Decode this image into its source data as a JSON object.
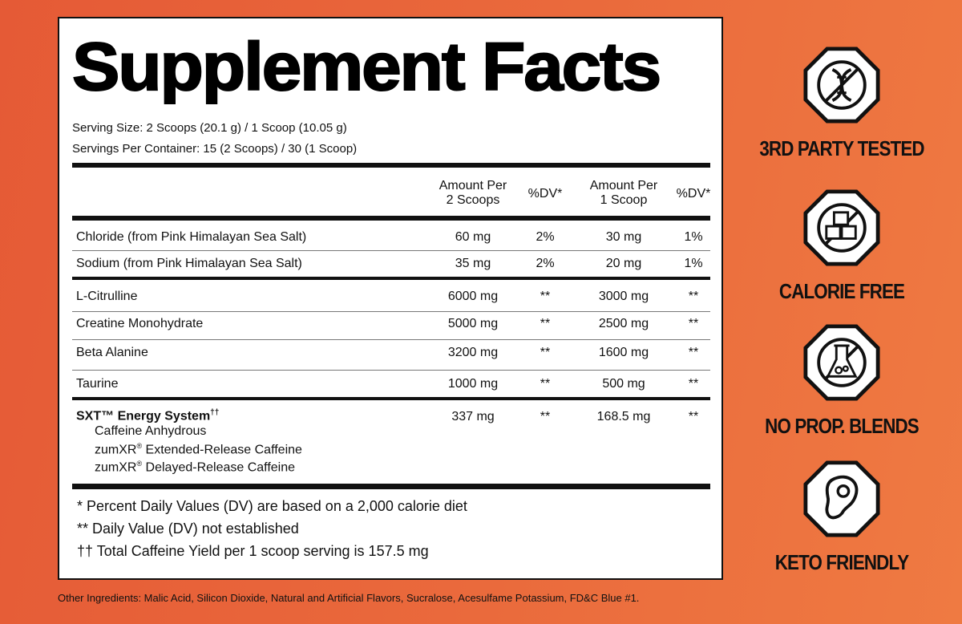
{
  "panel": {
    "title": "Supplement Facts",
    "serving_size": "Serving Size: 2 Scoops (20.1 g) / 1 Scoop (10.05 g)",
    "servings_per_container": "Servings Per Container: 15 (2 Scoops) / 30 (1 Scoop)",
    "headers": {
      "amount2_line1": "Amount Per",
      "amount2_line2": "2 Scoops",
      "dv2": "%DV*",
      "amount1_line1": "Amount Per",
      "amount1_line2": "1 Scoop",
      "dv1": "%DV*"
    },
    "rows": [
      {
        "name": "Chloride (from Pink Himalayan Sea Salt)",
        "amount2": "60 mg",
        "dv2": "2%",
        "amount1": "30 mg",
        "dv1": "1%"
      },
      {
        "name": "Sodium (from Pink Himalayan Sea Salt)",
        "amount2": "35 mg",
        "dv2": "2%",
        "amount1": "20 mg",
        "dv1": "1%"
      },
      {
        "name": "L-Citrulline",
        "amount2": "6000 mg",
        "dv2": "**",
        "amount1": "3000 mg",
        "dv1": "**"
      },
      {
        "name": "Creatine Monohydrate",
        "amount2": "5000 mg",
        "dv2": "**",
        "amount1": "2500 mg",
        "dv1": "**"
      },
      {
        "name": "Beta Alanine",
        "amount2": "3200 mg",
        "dv2": "**",
        "amount1": "1600 mg",
        "dv1": "**"
      },
      {
        "name": "Taurine",
        "amount2": "1000 mg",
        "dv2": "**",
        "amount1": "500 mg",
        "dv1": "**"
      }
    ],
    "energy_system": {
      "name": "SXT™ Energy System",
      "name_mark": "††",
      "amount2": "337 mg",
      "dv2": "**",
      "amount1": "168.5 mg",
      "dv1": "**",
      "sub_1": "Caffeine Anhydrous",
      "sub_2_prefix": "zumXR",
      "sub_2_suffix": " Extended-Release Caffeine",
      "sub_3_prefix": "zumXR",
      "sub_3_suffix": " Delayed-Release Caffeine",
      "registered": "®"
    },
    "footnotes": [
      "* Percent Daily Values (DV) are based on a 2,000 calorie diet",
      "** Daily Value (DV) not established",
      "†† Total Caffeine Yield per 1 scoop serving is 157.5 mg"
    ]
  },
  "other_ingredients": "Other Ingredients: Malic Acid, Silicon Dioxide, Natural and Artificial Flavors, Sucralose, Acesulfame Potassium, FD&C Blue #1.",
  "badges": [
    {
      "label": "3RD PARTY TESTED",
      "icon": "dna-icon"
    },
    {
      "label": "CALORIE FREE",
      "icon": "no-sugar-cubes-icon"
    },
    {
      "label": "NO PROP. BLENDS",
      "icon": "no-flask-icon"
    },
    {
      "label": "KETO FRIENDLY",
      "icon": "steak-icon"
    }
  ],
  "colors": {
    "background": "#ea6a3c",
    "ink": "#111111",
    "panel": "#ffffff"
  }
}
